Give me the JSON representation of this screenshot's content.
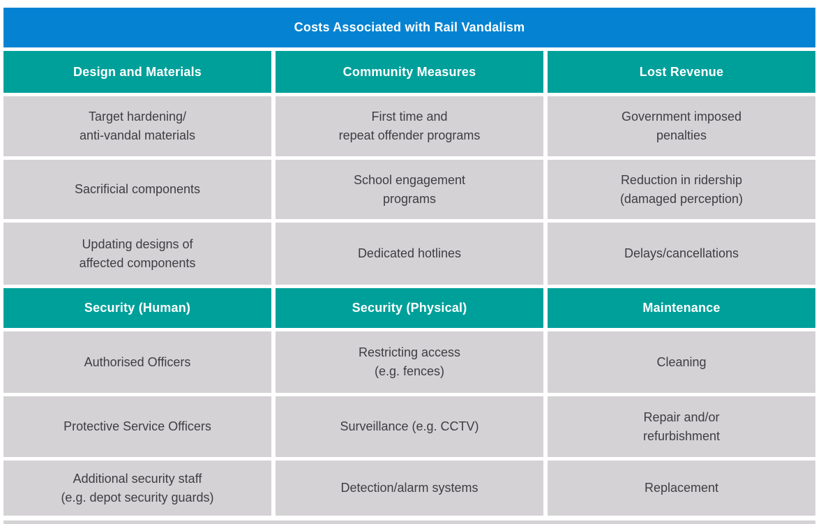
{
  "colors": {
    "title_bg": "#0583d2",
    "header_bg": "#00a09a",
    "cell_bg": "#d4d2d4",
    "cell_text": "#3e3d42",
    "header_text": "#ffffff"
  },
  "table": {
    "title": "Costs Associated with Rail Vandalism",
    "sections": [
      {
        "headers": [
          "Design and Materials",
          "Community Measures",
          "Lost Revenue"
        ],
        "rows": [
          [
            "Target hardening/\nanti-vandal materials",
            "First time and\nrepeat offender programs",
            "Government imposed\npenalties"
          ],
          [
            "Sacrificial components",
            "School engagement\nprograms",
            "Reduction in ridership\n(damaged perception)"
          ],
          [
            "Updating designs of\naffected components",
            "Dedicated hotlines",
            "Delays/cancellations"
          ]
        ]
      },
      {
        "headers": [
          "Security (Human)",
          "Security (Physical)",
          "Maintenance"
        ],
        "rows": [
          [
            "Authorised Officers",
            "Restricting access\n(e.g. fences)",
            "Cleaning"
          ],
          [
            "Protective Service Officers",
            "Surveillance (e.g. CCTV)",
            "Repair and/or\nrefurbishment"
          ],
          [
            "Additional security staff\n(e.g. depot security guards)",
            "Detection/alarm systems",
            "Replacement"
          ]
        ]
      }
    ]
  }
}
